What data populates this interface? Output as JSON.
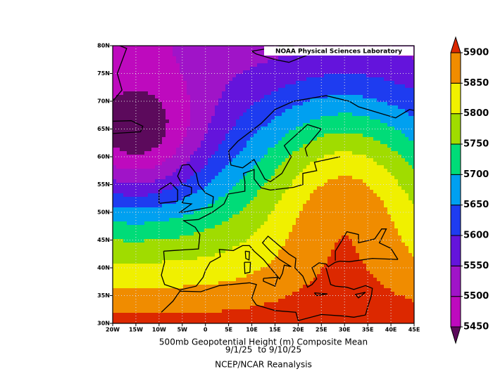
{
  "title": "500mb Geopotential Height (m) Composite Mean",
  "date_range": "9/1/25  to 9/10/25",
  "source": "NCEP/NCAR Reanalysis",
  "credit": "NOAA Physical Sciences Laboratory",
  "map": {
    "lon_range": [
      -20,
      45
    ],
    "lat_range": [
      30,
      80
    ],
    "lon_ticks": [
      {
        "value": -20,
        "label": "20W"
      },
      {
        "value": -15,
        "label": "15W"
      },
      {
        "value": -10,
        "label": "10W"
      },
      {
        "value": -5,
        "label": "5W"
      },
      0,
      {
        "value": 5,
        "label": "5E"
      },
      {
        "value": 10,
        "label": "10E"
      },
      {
        "value": 15,
        "label": "15E"
      },
      {
        "value": 20,
        "label": "20E"
      },
      {
        "value": 25,
        "label": "25E"
      },
      {
        "value": 30,
        "label": "30E"
      },
      {
        "value": 35,
        "label": "35E"
      },
      {
        "value": 40,
        "label": "40E"
      },
      {
        "value": 45,
        "label": "45E"
      }
    ],
    "lat_ticks": [
      {
        "value": 30,
        "label": "30N"
      },
      {
        "value": 35,
        "label": "35N"
      },
      {
        "value": 40,
        "label": "40N"
      },
      {
        "value": 45,
        "label": "45N"
      },
      {
        "value": 50,
        "label": "50N"
      },
      {
        "value": 55,
        "label": "55N"
      },
      {
        "value": 60,
        "label": "60N"
      },
      {
        "value": 65,
        "label": "65N"
      },
      {
        "value": 70,
        "label": "70N"
      },
      {
        "value": 75,
        "label": "75N"
      },
      {
        "value": 80,
        "label": "80N"
      }
    ]
  },
  "colorbar": {
    "levels": [
      5450,
      5500,
      5550,
      5600,
      5650,
      5700,
      5750,
      5800,
      5850,
      5900
    ],
    "colors": [
      "#5c0a5c",
      "#be0abe",
      "#a014c8",
      "#6414dc",
      "#1e3cf0",
      "#00a0f0",
      "#00dc78",
      "#a0dc00",
      "#f0f000",
      "#f08c00",
      "#dc2800"
    ]
  }
}
